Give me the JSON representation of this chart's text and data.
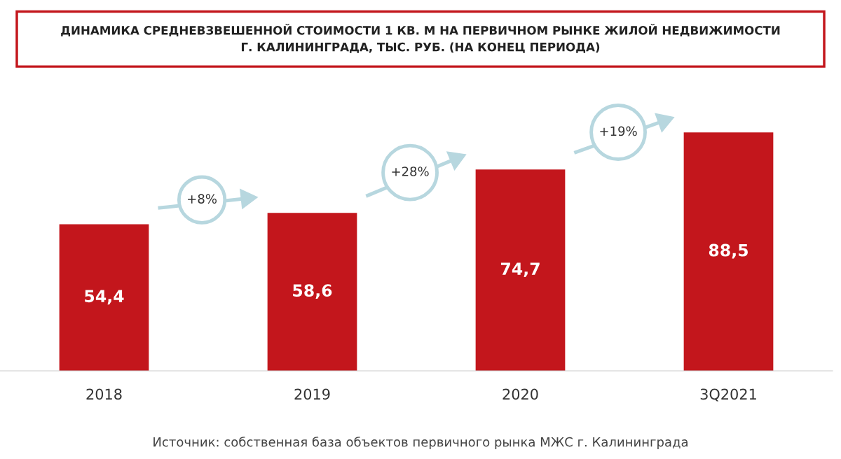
{
  "chart_data": {
    "type": "bar",
    "title": "ДИНАМИКА СРЕДНЕВЗВЕШЕННОЙ СТОИМОСТИ 1 КВ. М НА ПЕРВИЧНОМ РЫНКЕ ЖИЛОЙ НЕДВИЖИМОСТИ\nГ. КАЛИНИНГРАДА, ТЫС. РУБ. (НА КОНЕЦ ПЕРИОДА)",
    "categories": [
      "2018",
      "2019",
      "2020",
      "3Q2021"
    ],
    "values": [
      54.4,
      58.6,
      74.7,
      88.5
    ],
    "value_labels": [
      "54,4",
      "58,6",
      "74,7",
      "88,5"
    ],
    "color": "#c3161c",
    "tick_labels": "x",
    "grid": false,
    "annotations": [
      "+8%",
      "+28%",
      "+19%",
      "Источник: собственная база объектов первичного рынка МЖС г. Калининграда"
    ]
  }
}
